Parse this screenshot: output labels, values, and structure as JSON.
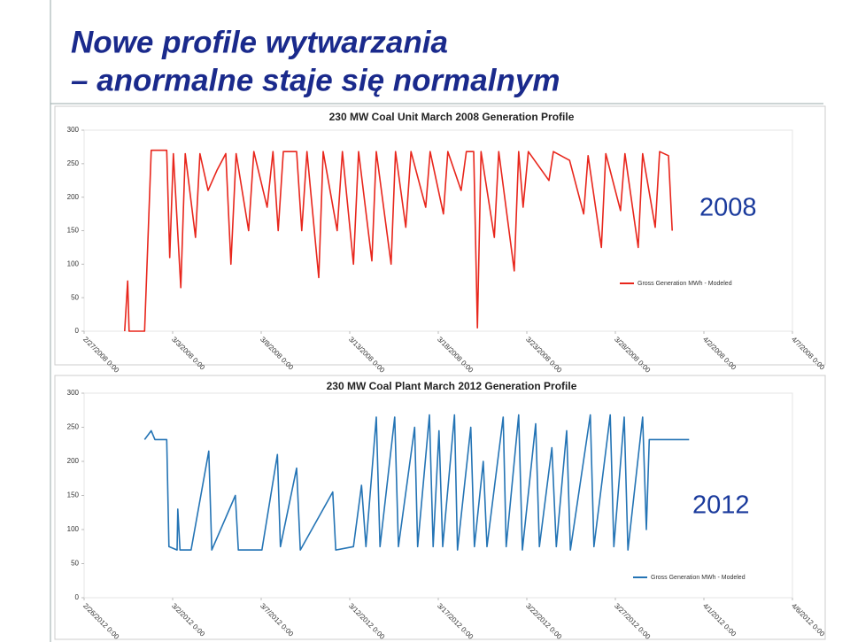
{
  "slide": {
    "title_line1": "Nowe profile wytwarzania",
    "title_line2": "– anormalne staje się normalnym"
  },
  "chart_data": [
    {
      "type": "line",
      "title": "230 MW Coal Unit March 2008 Generation Profile",
      "annotation": "2008",
      "xlim": [
        "2/27/2008 0:00",
        "4/7/2008 0:00"
      ],
      "xticks": [
        "2/27/2008 0:00",
        "3/3/2008 0:00",
        "3/8/2008 0:00",
        "3/13/2008 0:00",
        "3/18/2008 0:00",
        "3/23/2008 0:00",
        "3/28/2008 0:00",
        "4/2/2008 0:00",
        "4/7/2008 0:00"
      ],
      "ylim": [
        0,
        300
      ],
      "yticks": [
        0,
        50,
        100,
        150,
        200,
        250,
        300
      ],
      "x": [
        "2/29/2008 7:00",
        "2/29/2008 11:00",
        "2/29/2008 13:00",
        "3/1/2008 10:00",
        "3/1/2008 19:00",
        "3/2/2008 16:00",
        "3/2/2008 20:00",
        "3/3/2008 1:00",
        "3/3/2008 11:00",
        "3/3/2008 17:00",
        "3/4/2008 7:00",
        "3/4/2008 13:00",
        "3/5/2008 0:00",
        "3/5/2008 12:00",
        "3/6/2008 0:00",
        "3/6/2008 7:00",
        "3/6/2008 14:00",
        "3/7/2008 7:00",
        "3/7/2008 14:00",
        "3/8/2008 8:00",
        "3/8/2008 16:00",
        "3/8/2008 23:00",
        "3/9/2008 6:00",
        "3/10/2008 0:00",
        "3/10/2008 7:00",
        "3/10/2008 14:00",
        "3/11/2008 6:00",
        "3/11/2008 12:00",
        "3/12/2008 7:00",
        "3/12/2008 14:00",
        "3/13/2008 5:00",
        "3/13/2008 12:00",
        "3/14/2008 6:00",
        "3/14/2008 12:00",
        "3/15/2008 8:00",
        "3/15/2008 14:00",
        "3/16/2008 4:00",
        "3/16/2008 11:00",
        "3/17/2008 7:00",
        "3/17/2008 13:00",
        "3/18/2008 7:00",
        "3/18/2008 13:00",
        "3/19/2008 7:00",
        "3/19/2008 14:00",
        "3/20/2008 0:00",
        "3/20/2008 5:00",
        "3/20/2008 10:00",
        "3/21/2008 4:00",
        "3/21/2008 10:00",
        "3/22/2008 7:00",
        "3/22/2008 13:00",
        "3/22/2008 19:00",
        "3/23/2008 2:00",
        "3/24/2008 6:00",
        "3/24/2008 12:00",
        "3/25/2008 10:00",
        "3/26/2008 5:00",
        "3/26/2008 11:00",
        "3/27/2008 5:00",
        "3/27/2008 11:00",
        "3/28/2008 7:00",
        "3/28/2008 13:00",
        "3/29/2008 7:00",
        "3/29/2008 13:00",
        "3/30/2008 6:00",
        "3/30/2008 12:00",
        "3/31/2008 0:00",
        "3/31/2008 5:00"
      ],
      "series": [
        {
          "name": "Gross Generation MWh  - Modeled",
          "color": "#e8261c",
          "values": [
            0,
            75,
            0,
            0,
            270,
            270,
            110,
            265,
            65,
            265,
            140,
            265,
            210,
            240,
            265,
            100,
            265,
            150,
            268,
            185,
            268,
            150,
            268,
            268,
            150,
            268,
            80,
            268,
            150,
            268,
            100,
            268,
            105,
            268,
            100,
            268,
            155,
            268,
            185,
            268,
            175,
            268,
            210,
            268,
            268,
            5,
            268,
            140,
            268,
            90,
            268,
            185,
            268,
            225,
            268,
            255,
            175,
            262,
            125,
            265,
            180,
            265,
            125,
            265,
            155,
            268,
            262,
            150
          ]
        }
      ]
    },
    {
      "type": "line",
      "title": "230 MW Coal Plant March 2012 Generation Profile",
      "annotation": "2012",
      "xlim": [
        "2/26/2012 0:00",
        "4/6/2012 0:00"
      ],
      "xticks": [
        "2/26/2012 0:00",
        "3/2/2012 0:00",
        "3/7/2012 0:00",
        "3/12/2012 0:00",
        "3/17/2012 0:00",
        "3/22/2012 0:00",
        "3/27/2012 0:00",
        "4/1/2012 0:00",
        "4/6/2012 0:00"
      ],
      "ylim": [
        0,
        300
      ],
      "yticks": [
        0,
        50,
        100,
        150,
        200,
        250,
        300
      ],
      "x": [
        "2/29/2012 10:00",
        "2/29/2012 19:00",
        "3/1/2012 0:00",
        "3/1/2012 16:00",
        "3/1/2012 19:00",
        "3/2/2012 6:00",
        "3/2/2012 7:00",
        "3/2/2012 10:00",
        "3/3/2012 1:00",
        "3/4/2012 1:00",
        "3/4/2012 5:00",
        "3/5/2012 13:00",
        "3/5/2012 17:00",
        "3/7/2012 1:00",
        "3/7/2012 22:00",
        "3/8/2012 2:00",
        "3/9/2012 0:00",
        "3/9/2012 5:00",
        "3/11/2012 1:00",
        "3/11/2012 5:00",
        "3/12/2012 5:00",
        "3/12/2012 16:00",
        "3/12/2012 22:00",
        "3/13/2012 12:00",
        "3/13/2012 17:00",
        "3/14/2012 13:00",
        "3/14/2012 18:00",
        "3/15/2012 16:00",
        "3/15/2012 20:00",
        "3/16/2012 12:00",
        "3/16/2012 17:00",
        "3/17/2012 1:00",
        "3/17/2012 6:00",
        "3/17/2012 22:00",
        "3/18/2012 2:00",
        "3/18/2012 20:00",
        "3/19/2012 1:00",
        "3/19/2012 13:00",
        "3/19/2012 18:00",
        "3/20/2012 16:00",
        "3/20/2012 20:00",
        "3/21/2012 13:00",
        "3/21/2012 18:00",
        "3/22/2012 12:00",
        "3/22/2012 17:00",
        "3/23/2012 10:00",
        "3/23/2012 16:00",
        "3/24/2012 6:00",
        "3/24/2012 11:00",
        "3/25/2012 14:00",
        "3/25/2012 19:00",
        "3/26/2012 17:00",
        "3/26/2012 22:00",
        "3/27/2012 12:00",
        "3/27/2012 17:00",
        "3/28/2012 13:00",
        "3/28/2012 18:00",
        "3/28/2012 22:00",
        "3/31/2012 4:00"
      ],
      "series": [
        {
          "name": "Gross Generation MWh  - Modeled",
          "color": "#2474b5",
          "values": [
            232,
            245,
            232,
            232,
            75,
            70,
            130,
            70,
            70,
            215,
            70,
            150,
            70,
            70,
            210,
            75,
            190,
            70,
            155,
            70,
            75,
            165,
            75,
            265,
            75,
            265,
            75,
            250,
            75,
            268,
            75,
            245,
            75,
            268,
            70,
            250,
            75,
            200,
            75,
            265,
            75,
            268,
            70,
            255,
            75,
            220,
            75,
            245,
            70,
            268,
            75,
            268,
            75,
            265,
            70,
            265,
            100,
            232,
            232
          ]
        }
      ]
    }
  ]
}
